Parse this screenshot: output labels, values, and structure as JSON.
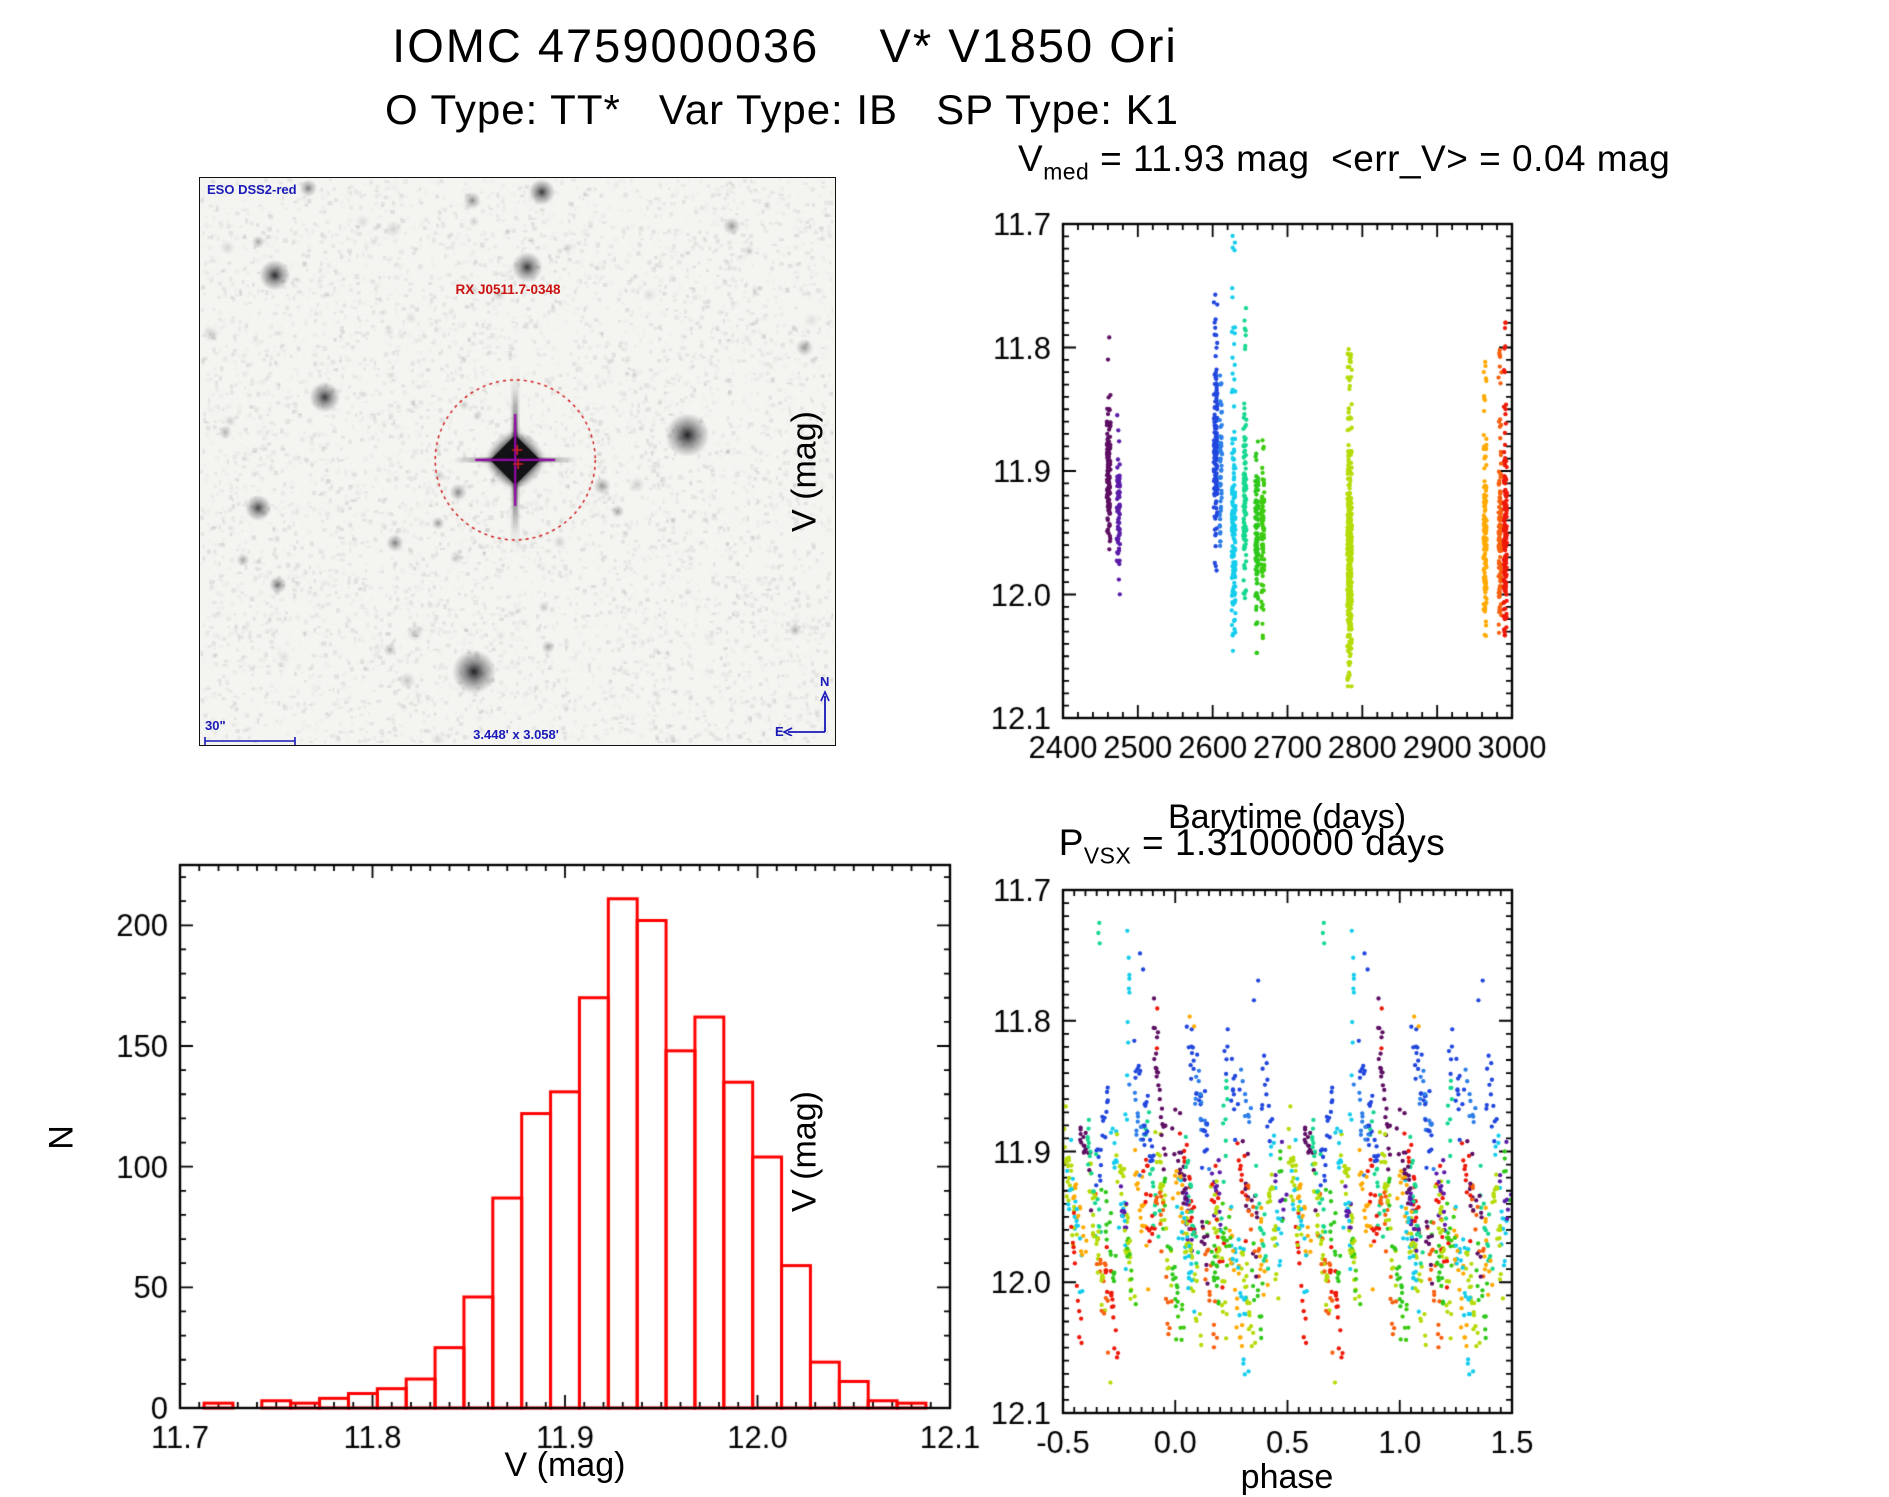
{
  "page": {
    "title": "IOMC 4759000036    V* V1850 Ori",
    "subtitle": "O Type: TT*   Var Type: IB   SP Type: K1"
  },
  "finder": {
    "survey_label": "ESO DSS2-red",
    "source_label": "RX J0511.7-0348",
    "scale_bar_label": "30\"",
    "fov_label": "3.448' x 3.058'",
    "compass_north": "N",
    "compass_east": "E",
    "annotation_color": "#1a1ab8",
    "marker_color": "#cc1111",
    "crosshair_color": "#9408a8",
    "target": {
      "fx": 0.498,
      "fy": 0.499,
      "circle_r": 80
    },
    "stars": [
      [
        0.171,
        0.018,
        4,
        0.5
      ],
      [
        0.54,
        0.025,
        6,
        0.8
      ],
      [
        0.092,
        0.113,
        3,
        0.35
      ],
      [
        0.118,
        0.172,
        7,
        0.85
      ],
      [
        0.517,
        0.158,
        7,
        0.8
      ],
      [
        0.197,
        0.388,
        7,
        0.8
      ],
      [
        0.77,
        0.455,
        10,
        0.9
      ],
      [
        0.092,
        0.584,
        6,
        0.75
      ],
      [
        0.408,
        0.556,
        4,
        0.45
      ],
      [
        0.376,
        0.611,
        3,
        0.4
      ],
      [
        0.308,
        0.646,
        4,
        0.5
      ],
      [
        0.068,
        0.676,
        3,
        0.35
      ],
      [
        0.123,
        0.72,
        4,
        0.55
      ],
      [
        0.433,
        0.874,
        10,
        0.9
      ],
      [
        0.3,
        0.835,
        3,
        0.3
      ],
      [
        0.55,
        0.83,
        3,
        0.35
      ],
      [
        0.94,
        0.8,
        3,
        0.3
      ],
      [
        0.84,
        0.085,
        4,
        0.4
      ],
      [
        0.43,
        0.04,
        4,
        0.45
      ],
      [
        0.635,
        0.545,
        4,
        0.4
      ],
      [
        0.66,
        0.59,
        3,
        0.35
      ],
      [
        0.955,
        0.3,
        4,
        0.4
      ],
      [
        0.04,
        0.45,
        3,
        0.3
      ]
    ]
  },
  "chart_data": [
    {
      "type": "scatter",
      "name": "light_curve",
      "title_pre": "V",
      "title_sub": "med",
      "title_post": " = 11.93 mag  <err_V> = 0.04 mag",
      "vmed_mag": 11.93,
      "err_v_mag": 0.04,
      "xlabel": "Barytime (days)",
      "ylabel": "V (mag)",
      "xlim": [
        2400,
        3000
      ],
      "ytop": 11.7,
      "ybot": 12.1,
      "xticks": [
        2400,
        2500,
        2600,
        2700,
        2800,
        2900,
        3000
      ],
      "xtick_labels": [
        "2400",
        "2500",
        "2600",
        "2700",
        "2800",
        "2900",
        "3000"
      ],
      "yticks": [
        11.7,
        11.8,
        11.9,
        12.0,
        12.1
      ],
      "ytick_labels": [
        "11.7",
        "11.8",
        "11.9",
        "12.0",
        "12.1"
      ],
      "xminor": 20,
      "yminor": 0.01,
      "grid": false,
      "legend": "none",
      "clusters": [
        {
          "t": 2461,
          "spread": 2.5,
          "color": "#5e0f63",
          "n": 130,
          "core": [
            11.862,
            11.948
          ],
          "tail": [
            11.782,
            11.965
          ]
        },
        {
          "t": 2474,
          "spread": 2.0,
          "color": "#5a1ca8",
          "n": 70,
          "core": [
            11.888,
            11.972
          ],
          "tail": [
            11.848,
            12.005
          ]
        },
        {
          "t": 2604,
          "spread": 2.5,
          "color": "#2247dd",
          "n": 150,
          "core": [
            11.832,
            11.932
          ],
          "tail": [
            11.742,
            11.982
          ]
        },
        {
          "t": 2611,
          "spread": 1.5,
          "color": "#2e7fe8",
          "n": 55,
          "core": [
            11.845,
            11.935
          ],
          "tail": [
            11.8,
            11.968
          ]
        },
        {
          "t": 2628,
          "spread": 2.5,
          "color": "#16cdec",
          "n": 150,
          "core": [
            11.886,
            12.018
          ],
          "tail": [
            11.705,
            12.048
          ]
        },
        {
          "t": 2643,
          "spread": 2.0,
          "color": "#17d890",
          "n": 115,
          "core": [
            11.866,
            11.988
          ],
          "tail": [
            11.768,
            12.028
          ]
        },
        {
          "t": 2659,
          "spread": 2.0,
          "color": "#2fc81c",
          "n": 110,
          "core": [
            11.898,
            12.004
          ],
          "tail": [
            11.866,
            12.05
          ]
        },
        {
          "t": 2667,
          "spread": 2.0,
          "color": "#3ecb10",
          "n": 85,
          "core": [
            11.894,
            11.999
          ],
          "tail": [
            11.868,
            12.044
          ]
        },
        {
          "t": 2783,
          "spread": 3.0,
          "color": "#b5dc0a",
          "n": 380,
          "core": [
            11.896,
            12.04
          ],
          "tail": [
            11.8,
            12.075
          ]
        },
        {
          "t": 2964,
          "spread": 2.0,
          "color": "#ffaa00",
          "n": 135,
          "core": [
            11.894,
            12.01
          ],
          "tail": [
            11.798,
            12.034
          ]
        },
        {
          "t": 2984,
          "spread": 2.0,
          "color": "#f8600f",
          "n": 120,
          "core": [
            11.9,
            12.016
          ],
          "tail": [
            11.794,
            12.03
          ]
        },
        {
          "t": 2991,
          "spread": 2.0,
          "color": "#ee1809",
          "n": 160,
          "core": [
            11.904,
            12.018
          ],
          "tail": [
            11.778,
            12.034
          ]
        }
      ]
    },
    {
      "type": "bar",
      "name": "v_histogram",
      "xlabel": "V (mag)",
      "ylabel": "N",
      "color": "#ff0000",
      "bin_start": 11.7125,
      "bin_width": 0.015,
      "counts": [
        2,
        0,
        3,
        2,
        4,
        6,
        8,
        12,
        25,
        46,
        87,
        122,
        131,
        170,
        211,
        202,
        148,
        162,
        135,
        104,
        59,
        19,
        11,
        3,
        2
      ],
      "xlim": [
        11.7,
        12.1
      ],
      "ytop": 225,
      "ybot": 0,
      "xticks": [
        11.7,
        11.8,
        11.9,
        12.0,
        12.1
      ],
      "xtick_labels": [
        "11.7",
        "11.8",
        "11.9",
        "12.0",
        "12.1"
      ],
      "yticks": [
        0,
        50,
        100,
        150,
        200
      ],
      "ytick_labels": [
        "0",
        "50",
        "100",
        "150",
        "200"
      ],
      "xminor": 0.01,
      "yminor": 10,
      "grid": false,
      "legend": "none"
    },
    {
      "type": "scatter",
      "name": "phase_curve",
      "title_pre": "P",
      "title_sub": "VSX",
      "title_post": " = 1.3100000 days",
      "period_days": 1.31,
      "xlabel": "phase",
      "ylabel": "V (mag)",
      "xlim": [
        -0.5,
        1.5
      ],
      "ytop": 11.7,
      "ybot": 12.1,
      "xticks": [
        -0.5,
        0.0,
        0.5,
        1.0,
        1.5
      ],
      "xtick_labels": [
        "-0.5",
        "0.0",
        "0.5",
        "1.0",
        "1.5"
      ],
      "yticks": [
        11.7,
        11.8,
        11.9,
        12.0,
        12.1
      ],
      "ytick_labels": [
        "11.7",
        "11.8",
        "11.9",
        "12.0",
        "12.1"
      ],
      "xminor": 0.05,
      "yminor": 0.01,
      "grid": false,
      "legend": "none",
      "streaks": [
        {
          "color": "#5e0f63",
          "segs": [
            [
              -0.4,
              11.9,
              0.06,
              0.05,
              16
            ],
            [
              -0.07,
              11.855,
              0.05,
              0.1,
              24
            ],
            [
              0.02,
              11.905,
              0.06,
              0.08,
              20
            ],
            [
              0.33,
              11.94,
              0.06,
              0.06,
              14
            ],
            [
              0.13,
              11.965,
              0.04,
              0.04,
              8
            ]
          ]
        },
        {
          "color": "#5a1ca8",
          "segs": [
            [
              0.07,
              11.96,
              0.05,
              0.06,
              14
            ],
            [
              0.185,
              11.935,
              0.05,
              0.05,
              12
            ],
            [
              -0.22,
              11.95,
              0.04,
              0.05,
              9
            ],
            [
              0.47,
              11.92,
              0.04,
              0.06,
              8
            ]
          ]
        },
        {
          "color": "#2247dd",
          "segs": [
            [
              -0.32,
              11.885,
              0.07,
              -0.06,
              18
            ],
            [
              -0.135,
              11.87,
              0.08,
              0.09,
              26
            ],
            [
              0.1,
              11.855,
              0.09,
              0.09,
              28
            ],
            [
              0.25,
              11.845,
              0.06,
              0.05,
              16
            ],
            [
              0.42,
              11.875,
              0.06,
              0.06,
              13
            ],
            [
              -0.145,
              11.75,
              0.012,
              0.012,
              2
            ],
            [
              0.36,
              11.76,
              0.01,
              0.01,
              2
            ]
          ]
        },
        {
          "color": "#2e7fe8",
          "segs": [
            [
              -0.18,
              11.875,
              0.06,
              0.05,
              12
            ],
            [
              0.12,
              11.87,
              0.07,
              0.06,
              14
            ],
            [
              0.31,
              11.862,
              0.05,
              0.04,
              9
            ]
          ]
        },
        {
          "color": "#16cdec",
          "segs": [
            [
              -0.45,
              11.95,
              0.06,
              0.08,
              18
            ],
            [
              -0.25,
              11.925,
              0.06,
              0.09,
              18
            ],
            [
              -0.21,
              11.8,
              0.03,
              -0.16,
              10
            ],
            [
              0.05,
              11.975,
              0.07,
              0.08,
              22
            ],
            [
              0.28,
              11.99,
              0.07,
              0.06,
              18
            ],
            [
              0.45,
              11.935,
              0.05,
              0.08,
              14
            ],
            [
              -0.21,
              11.715,
              0.015,
              0.008,
              2
            ],
            [
              0.3,
              12.05,
              0.03,
              0.03,
              4
            ]
          ]
        },
        {
          "color": "#17d890",
          "segs": [
            [
              -0.36,
              11.93,
              0.07,
              0.09,
              20
            ],
            [
              -0.335,
              11.74,
              0.012,
              0.05,
              3
            ],
            [
              -0.1,
              11.925,
              0.06,
              0.08,
              16
            ],
            [
              0.07,
              11.94,
              0.06,
              0.09,
              18
            ],
            [
              0.22,
              11.905,
              0.04,
              -0.14,
              12
            ],
            [
              0.38,
              11.96,
              0.06,
              0.07,
              14
            ]
          ]
        },
        {
          "color": "#2fc81c",
          "segs": [
            [
              -0.29,
              11.97,
              0.06,
              0.07,
              16
            ],
            [
              -0.02,
              11.975,
              0.06,
              0.08,
              18
            ],
            [
              0.17,
              11.99,
              0.06,
              0.06,
              16
            ],
            [
              0.36,
              12.005,
              0.05,
              0.05,
              11
            ],
            [
              0.47,
              11.93,
              0.03,
              0.05,
              6
            ]
          ]
        },
        {
          "color": "#3ecb10",
          "segs": [
            [
              -0.2,
              11.985,
              0.05,
              0.05,
              10
            ],
            [
              0.23,
              11.975,
              0.05,
              0.06,
              12
            ],
            [
              0.02,
              12.03,
              0.04,
              0.04,
              7
            ]
          ]
        },
        {
          "color": "#b5dc0a",
          "segs": [
            [
              -0.47,
              11.925,
              0.06,
              0.1,
              24
            ],
            [
              -0.35,
              11.97,
              0.07,
              0.1,
              28
            ],
            [
              -0.285,
              12.085,
              0.006,
              0.006,
              1
            ],
            [
              -0.22,
              11.955,
              0.07,
              0.12,
              28
            ],
            [
              -0.05,
              11.945,
              0.06,
              0.1,
              24
            ],
            [
              0.08,
              12.0,
              0.07,
              0.09,
              26
            ],
            [
              0.2,
              11.985,
              0.06,
              0.1,
              24
            ],
            [
              0.33,
              12.02,
              0.06,
              0.08,
              20
            ],
            [
              0.44,
              11.965,
              0.05,
              0.09,
              18
            ]
          ]
        },
        {
          "color": "#ffaa00",
          "segs": [
            [
              -0.42,
              11.96,
              0.06,
              0.08,
              16
            ],
            [
              -0.15,
              11.945,
              0.06,
              0.09,
              18
            ],
            [
              0.02,
              11.935,
              0.05,
              0.07,
              14
            ],
            [
              0.27,
              12.0,
              0.06,
              0.09,
              18
            ],
            [
              0.4,
              11.99,
              0.05,
              0.06,
              11
            ],
            [
              0.07,
              11.8,
              0.01,
              0.02,
              2
            ]
          ]
        },
        {
          "color": "#f8600f",
          "segs": [
            [
              -0.33,
              11.99,
              0.06,
              0.08,
              16
            ],
            [
              -0.05,
              11.975,
              0.06,
              0.1,
              18
            ],
            [
              0.15,
              12.0,
              0.06,
              0.08,
              16
            ],
            [
              0.35,
              11.955,
              0.05,
              0.07,
              11
            ]
          ]
        },
        {
          "color": "#ee1809",
          "segs": [
            [
              -0.44,
              12.0,
              0.05,
              0.07,
              12
            ],
            [
              -0.28,
              12.02,
              0.06,
              0.07,
              16
            ],
            [
              -0.12,
              11.945,
              0.05,
              0.08,
              14
            ],
            [
              0.06,
              11.925,
              0.06,
              0.1,
              18
            ],
            [
              0.19,
              11.955,
              0.05,
              0.08,
              14
            ],
            [
              0.3,
              11.915,
              0.05,
              0.06,
              11
            ],
            [
              -0.08,
              11.79,
              0.01,
              0.02,
              2
            ]
          ]
        }
      ]
    }
  ]
}
